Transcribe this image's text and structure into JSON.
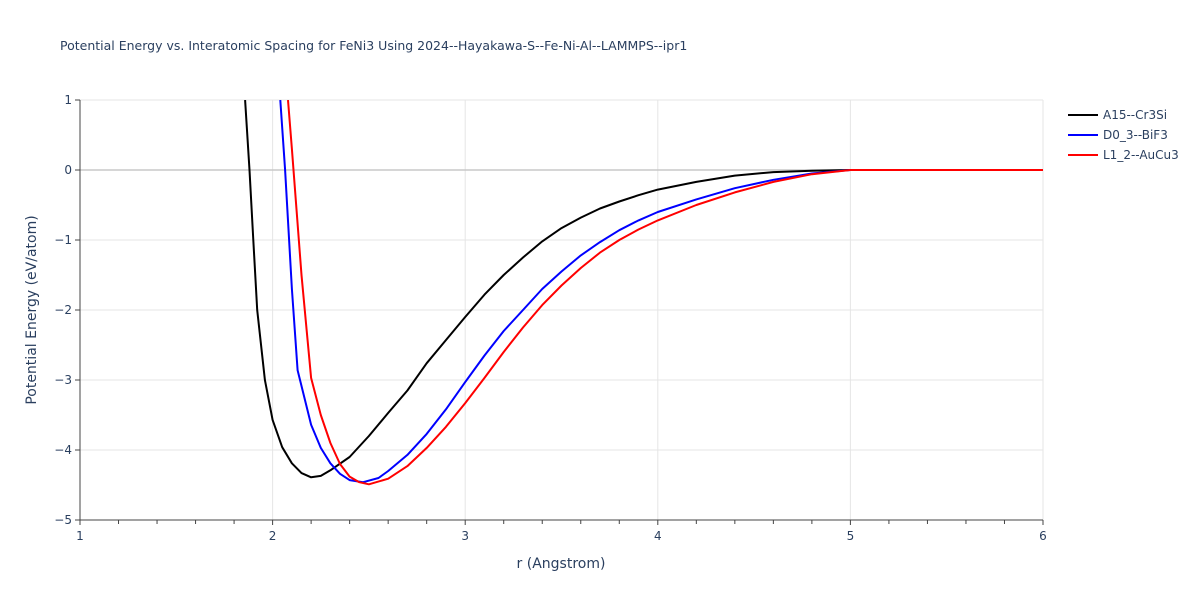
{
  "chart_data": {
    "type": "line",
    "title": "Potential Energy vs. Interatomic Spacing for FeNi3 Using 2024--Hayakawa-S--Fe-Ni-Al--LAMMPS--ipr1",
    "xlabel": "r (Angstrom)",
    "ylabel": "Potential Energy (eV/atom)",
    "xlim": [
      1,
      6
    ],
    "ylim": [
      -5,
      1
    ],
    "xticks": [
      1,
      2,
      3,
      4,
      5,
      6
    ],
    "yticks": [
      1,
      0,
      -1,
      -2,
      -3,
      -4,
      -5
    ],
    "xtick_labels": [
      "1",
      "2",
      "3",
      "4",
      "5",
      "6"
    ],
    "ytick_labels": [
      "1",
      "0",
      "−1",
      "−2",
      "−3",
      "−4",
      "−5"
    ],
    "grid": true,
    "legend_position": "top-right",
    "series": [
      {
        "name": "A15--Cr3Si",
        "color": "#000000",
        "x": [
          1.857,
          1.88,
          1.9,
          1.92,
          1.96,
          2.0,
          2.05,
          2.1,
          2.15,
          2.2,
          2.25,
          2.3,
          2.4,
          2.5,
          2.6,
          2.7,
          2.8,
          2.9,
          3.0,
          3.1,
          3.2,
          3.3,
          3.4,
          3.5,
          3.6,
          3.7,
          3.8,
          3.9,
          4.0,
          4.2,
          4.4,
          4.6,
          4.8,
          5.0,
          6.0
        ],
        "y": [
          1,
          0,
          -1,
          -2,
          -3,
          -3.57,
          -3.96,
          -4.19,
          -4.33,
          -4.39,
          -4.37,
          -4.29,
          -4.1,
          -3.8,
          -3.47,
          -3.15,
          -2.76,
          -2.43,
          -2.1,
          -1.78,
          -1.5,
          -1.25,
          -1.02,
          -0.83,
          -0.68,
          -0.55,
          -0.45,
          -0.36,
          -0.28,
          -0.17,
          -0.08,
          -0.03,
          -0.01,
          0,
          0
        ]
      },
      {
        "name": "D0_3--BiF3",
        "color": "#0000ff",
        "x": [
          2.04,
          2.065,
          2.1,
          2.13,
          2.2,
          2.25,
          2.3,
          2.35,
          2.4,
          2.47,
          2.55,
          2.6,
          2.7,
          2.8,
          2.9,
          3.0,
          3.1,
          3.2,
          3.3,
          3.4,
          3.5,
          3.6,
          3.7,
          3.8,
          3.9,
          4.0,
          4.2,
          4.4,
          4.6,
          4.8,
          5.0,
          6.0
        ],
        "y": [
          1,
          0,
          -1.7,
          -2.86,
          -3.64,
          -3.97,
          -4.19,
          -4.34,
          -4.43,
          -4.46,
          -4.4,
          -4.3,
          -4.07,
          -3.77,
          -3.42,
          -3.03,
          -2.65,
          -2.3,
          -2.0,
          -1.7,
          -1.45,
          -1.22,
          -1.03,
          -0.86,
          -0.72,
          -0.6,
          -0.42,
          -0.26,
          -0.14,
          -0.05,
          0,
          0
        ]
      },
      {
        "name": "L1_2--AuCu3",
        "color": "#ff0000",
        "x": [
          2.08,
          2.1,
          2.15,
          2.2,
          2.25,
          2.3,
          2.35,
          2.4,
          2.45,
          2.5,
          2.6,
          2.7,
          2.8,
          2.9,
          3.0,
          3.1,
          3.2,
          3.3,
          3.4,
          3.5,
          3.6,
          3.7,
          3.8,
          3.9,
          4.0,
          4.2,
          4.4,
          4.6,
          4.8,
          5.0,
          6.0
        ],
        "y": [
          1,
          0.3,
          -1.5,
          -2.97,
          -3.5,
          -3.9,
          -4.2,
          -4.38,
          -4.46,
          -4.49,
          -4.41,
          -4.23,
          -3.97,
          -3.67,
          -3.33,
          -2.97,
          -2.6,
          -2.25,
          -1.93,
          -1.65,
          -1.4,
          -1.18,
          -1.0,
          -0.85,
          -0.72,
          -0.5,
          -0.32,
          -0.17,
          -0.06,
          0,
          0
        ]
      }
    ]
  }
}
